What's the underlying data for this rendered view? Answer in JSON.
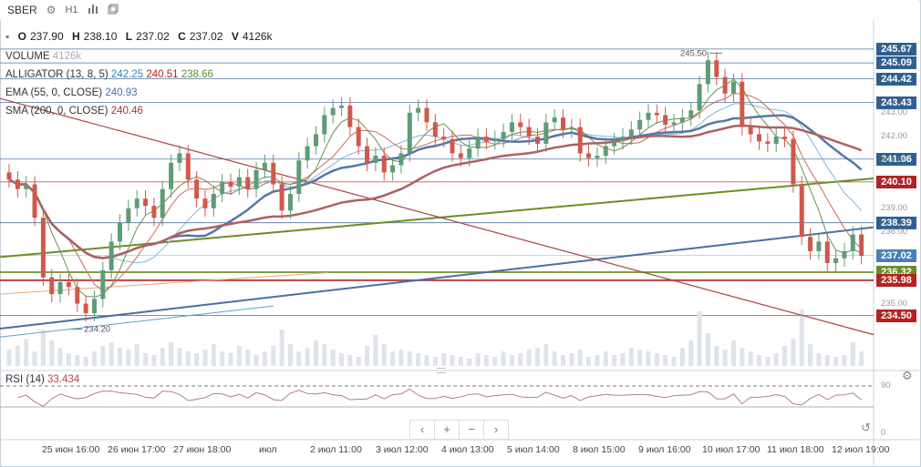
{
  "toolbar": {
    "symbol": "SBER",
    "timeframe": "H1",
    "settings_icon": "gear-icon",
    "indicators_icon": "bars-icon",
    "compare_icon": "window-icon"
  },
  "ohlc": {
    "o_label": "O",
    "o": "237.90",
    "h_label": "H",
    "h": "238.10",
    "l_label": "L",
    "l": "237.02",
    "c_label": "C",
    "c": "237.02",
    "v_label": "V",
    "v": "4126k"
  },
  "indicators": {
    "volume": {
      "label": "VOLUME",
      "value": "4126k"
    },
    "alligator": {
      "label": "ALLIGATOR (13, 8, 5)",
      "v1": "242.25",
      "v2": "240.51",
      "v3": "238.66"
    },
    "ema": {
      "label": "EMA (55, 0, CLOSE)",
      "value": "240.93"
    },
    "sma": {
      "label": "SMA (200, 0, CLOSE)",
      "value": "240.46"
    }
  },
  "price_axis": {
    "ticks": [
      "243.00",
      "242.00",
      "241.00",
      "239.00",
      "238.00",
      "235.00"
    ],
    "min": 233.8,
    "max": 246.2
  },
  "price_tags": [
    {
      "value": "245.67",
      "color": "#2f5f8f"
    },
    {
      "value": "245.09",
      "color": "#2f5f8f"
    },
    {
      "value": "244.42",
      "color": "#2f5f8f"
    },
    {
      "value": "243.43",
      "color": "#2f5f8f"
    },
    {
      "value": "241.06",
      "color": "#2f5f8f"
    },
    {
      "value": "240.10",
      "color": "#b22222"
    },
    {
      "value": "238.39",
      "color": "#2f5f8f"
    },
    {
      "value": "237.02",
      "color": "#4a7fb5"
    },
    {
      "value": "236.32",
      "color": "#6b8e23"
    },
    {
      "value": "235.98",
      "color": "#b22222"
    },
    {
      "value": "234.50",
      "color": "#b22222"
    }
  ],
  "annotations": {
    "high": "245.50",
    "low": "234.20"
  },
  "rsi": {
    "label": "RSI (14)",
    "value": "33.434",
    "axis_top": "90",
    "axis_bottom": "0"
  },
  "time_axis": [
    "25 июн 16:00",
    "26 июн 17:00",
    "27 июн 18:00",
    "июл",
    "2 июл 11:00",
    "3 июл 12:00",
    "4 июл 13:00",
    "5 июл 14:00",
    "8 июл 15:00",
    "9 июл 16:00",
    "10 июл 17:00",
    "11 июл 18:00",
    "12 июл 19:00"
  ],
  "zoom_controls": {
    "prev": "‹",
    "zoom_in": "+",
    "zoom_out": "−",
    "next": "›",
    "reset": "↺"
  },
  "chart_data": {
    "type": "candlestick",
    "symbol": "SBER",
    "timeframe": "H1",
    "closes": [
      240.2,
      239.8,
      240.0,
      238.6,
      236.1,
      235.4,
      235.9,
      235.7,
      235.0,
      234.6,
      235.2,
      236.4,
      237.6,
      238.4,
      239.0,
      239.4,
      239.1,
      238.6,
      239.8,
      240.9,
      241.3,
      240.2,
      239.4,
      239.0,
      239.6,
      240.1,
      239.9,
      240.3,
      239.8,
      240.6,
      240.9,
      240.0,
      238.9,
      239.6,
      241.0,
      241.6,
      242.1,
      242.9,
      243.2,
      243.3,
      242.4,
      241.6,
      240.9,
      241.2,
      240.5,
      240.8,
      241.3,
      243.0,
      243.2,
      242.6,
      242.0,
      241.9,
      241.3,
      241.1,
      241.5,
      242.0,
      241.8,
      241.9,
      242.2,
      242.6,
      242.4,
      242.0,
      241.7,
      242.6,
      242.8,
      242.3,
      242.4,
      241.3,
      241.1,
      241.2,
      241.6,
      241.8,
      242.0,
      242.3,
      242.7,
      243.0,
      242.9,
      242.5,
      242.6,
      242.8,
      243.1,
      244.2,
      245.2,
      244.5,
      243.8,
      244.3,
      242.4,
      242.1,
      241.8,
      241.7,
      242.0,
      241.9,
      240.0,
      237.8,
      237.2,
      237.6,
      236.7,
      236.9,
      237.2,
      237.9,
      237.0
    ],
    "volume_values": [
      18,
      22,
      30,
      16,
      40,
      28,
      20,
      14,
      12,
      10,
      16,
      22,
      26,
      20,
      18,
      24,
      14,
      12,
      20,
      26,
      20,
      16,
      14,
      18,
      24,
      16,
      14,
      22,
      18,
      12,
      16,
      22,
      40,
      24,
      16,
      20,
      28,
      24,
      18,
      14,
      12,
      10,
      22,
      34,
      24,
      16,
      18,
      16,
      14,
      12,
      10,
      14,
      12,
      10,
      8,
      14,
      12,
      10,
      16,
      12,
      14,
      18,
      20,
      24,
      16,
      12,
      14,
      18,
      10,
      12,
      16,
      12,
      14,
      20,
      18,
      16,
      14,
      12,
      10,
      20,
      28,
      60,
      36,
      22,
      18,
      28,
      20,
      16,
      12,
      10,
      14,
      22,
      30,
      62,
      24,
      14,
      12,
      10,
      12,
      26,
      16
    ]
  }
}
